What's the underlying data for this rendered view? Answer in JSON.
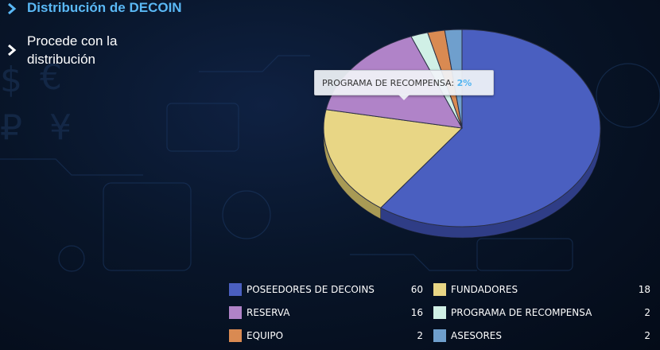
{
  "nav": {
    "active_label": "Distribución de DECOIN",
    "second_label": "Procede con la distribución"
  },
  "tooltip": {
    "name": "PROGRAMA DE RECOMPENSA",
    "value": "2%"
  },
  "colors": {
    "accent": "#5ab8f5",
    "background": "#081529"
  },
  "chart_data": {
    "type": "pie",
    "style": "3d",
    "slices": [
      {
        "name": "POSEEDORES DE DECOINS",
        "value": 60,
        "color": "#4a5fc0",
        "dark": "#2f3d86"
      },
      {
        "name": "FUNDADORES",
        "value": 18,
        "color": "#e8d685",
        "dark": "#a89a55"
      },
      {
        "name": "RESERVA",
        "value": 16,
        "color": "#b083c8",
        "dark": "#7a5890"
      },
      {
        "name": "PROGRAMA DE RECOMPENSA",
        "value": 2,
        "color": "#d0f0e6",
        "dark": "#92ada4"
      },
      {
        "name": "EQUIPO",
        "value": 2,
        "color": "#d98a52",
        "dark": "#9a5f36"
      },
      {
        "name": "ASESORES",
        "value": 2,
        "color": "#6f9fcd",
        "dark": "#4c7096"
      }
    ],
    "legend_order": [
      "POSEEDORES DE DECOINS",
      "FUNDADORES",
      "RESERVA",
      "PROGRAMA DE RECOMPENSA",
      "EQUIPO",
      "ASESORES"
    ]
  }
}
